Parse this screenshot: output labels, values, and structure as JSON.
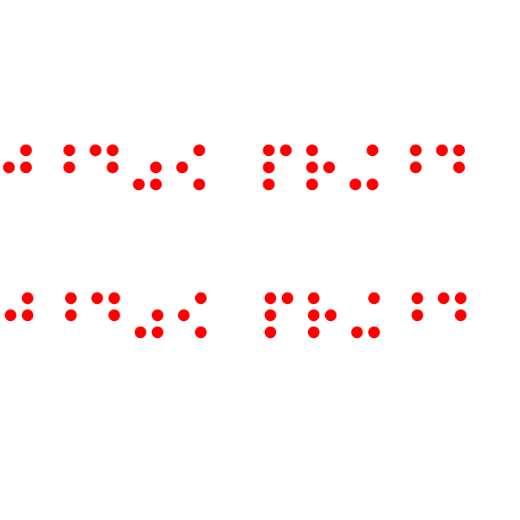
{
  "dot_color": "#ff0000",
  "background_color": "#ffffff",
  "braille_rows": [
    {
      "name": "braille-line-1",
      "cells": [
        [
          2,
          4,
          5
        ],
        [
          4,
          5
        ],
        [
          1,
          4,
          5
        ],
        [
          3,
          5,
          6
        ],
        [
          2,
          4,
          6
        ],
        null,
        [
          1,
          2,
          3,
          4
        ],
        [
          1,
          2,
          3,
          5
        ],
        [
          4,
          3,
          6
        ],
        [
          4,
          5
        ],
        [
          4,
          1,
          5
        ]
      ]
    },
    {
      "name": "braille-line-2",
      "cells": [
        [
          2,
          4,
          5
        ],
        [
          4,
          5
        ],
        [
          1,
          4,
          5
        ],
        [
          3,
          5,
          6
        ],
        [
          2,
          4,
          6
        ],
        null,
        [
          1,
          2,
          3,
          4
        ],
        [
          1,
          2,
          3,
          5
        ],
        [
          4,
          3,
          6
        ],
        [
          4,
          5
        ],
        [
          4,
          1,
          5
        ]
      ]
    }
  ]
}
